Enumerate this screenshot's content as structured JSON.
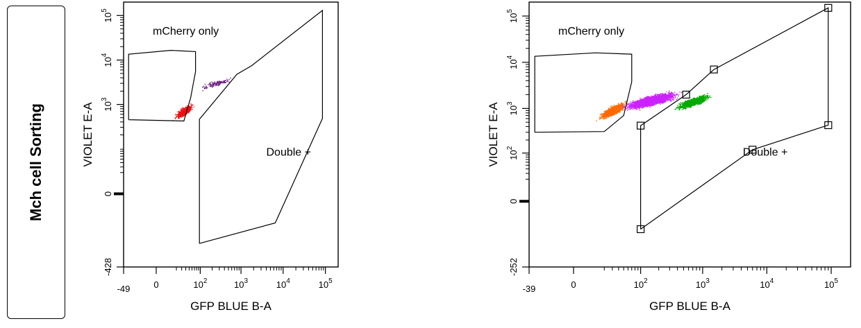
{
  "row_label": "Mch cell Sorting",
  "chart_data": [
    {
      "type": "scatter",
      "title": "",
      "xlabel": "GFP BLUE B-A",
      "ylabel": "VIOLET E-A",
      "x_scale": "biexponential",
      "y_scale": "biexponential",
      "xlim": [
        -49,
        200000
      ],
      "ylim": [
        -428,
        200000
      ],
      "x_ticks": [
        {
          "value": -49,
          "label": "-49"
        },
        {
          "value": 0,
          "label": "0"
        },
        {
          "value": 100,
          "label": "10^2"
        },
        {
          "value": 1000,
          "label": "10^3"
        },
        {
          "value": 10000,
          "label": "10^4"
        },
        {
          "value": 100000,
          "label": "10^5"
        }
      ],
      "y_ticks": [
        {
          "value": -428,
          "label": "-428"
        },
        {
          "value": 0,
          "label": "0"
        },
        {
          "value": 1000,
          "label": "10^3"
        },
        {
          "value": 10000,
          "label": "10^4"
        },
        {
          "value": 100000,
          "label": "10^5"
        }
      ],
      "gates": [
        {
          "name": "mCherry only",
          "label": "mCherry only",
          "vertices": [
            [
              -35,
              450
            ],
            [
              -35,
              13500
            ],
            [
              12,
              16500
            ],
            [
              75,
              15500
            ],
            [
              75,
              5500
            ],
            [
              55,
              1400
            ],
            [
              35,
              420
            ],
            [
              -35,
              450
            ]
          ]
        },
        {
          "name": "Double +",
          "label": "Double +",
          "show_handles": false,
          "vertices": [
            [
              95,
              -120
            ],
            [
              95,
              460
            ],
            [
              800,
              4800
            ],
            [
              1800,
              7500
            ],
            [
              85000,
              130000
            ],
            [
              85000,
              480
            ],
            [
              6500,
              -35
            ],
            [
              95,
              -120
            ]
          ]
        }
      ],
      "populations": [
        {
          "color": "#ee1111",
          "count": 700,
          "x_center": 35,
          "x_spread": 30,
          "y_center": 700,
          "y_spread": 500
        },
        {
          "color": "#6a1a80",
          "count": 130,
          "x_center": 250,
          "x_spread": 400,
          "y_center": 3000,
          "y_spread": 1500
        }
      ]
    },
    {
      "type": "scatter",
      "title": "",
      "xlabel": "GFP BLUE B-A",
      "ylabel": "VIOLET E-A",
      "x_scale": "biexponential",
      "y_scale": "biexponential",
      "xlim": [
        -39,
        200000
      ],
      "ylim": [
        -252,
        200000
      ],
      "x_ticks": [
        {
          "value": -39,
          "label": "-39"
        },
        {
          "value": 0,
          "label": "0"
        },
        {
          "value": 100,
          "label": "10^2"
        },
        {
          "value": 1000,
          "label": "10^3"
        },
        {
          "value": 10000,
          "label": "10^4"
        },
        {
          "value": 100000,
          "label": "10^5"
        }
      ],
      "y_ticks": [
        {
          "value": -252,
          "label": "-252"
        },
        {
          "value": 0,
          "label": "0"
        },
        {
          "value": 100,
          "label": "10^2"
        },
        {
          "value": 1000,
          "label": "10^3"
        },
        {
          "value": 10000,
          "label": "10^4"
        },
        {
          "value": 100000,
          "label": "10^5"
        }
      ],
      "gates": [
        {
          "name": "mCherry only",
          "label": "mCherry only",
          "vertices": [
            [
              -30,
              300
            ],
            [
              -30,
              13500
            ],
            [
              12,
              16000
            ],
            [
              70,
              15000
            ],
            [
              70,
              3800
            ],
            [
              50,
              700
            ],
            [
              20,
              310
            ],
            [
              -30,
              300
            ]
          ]
        },
        {
          "name": "Double +",
          "label": "Double +",
          "show_handles": true,
          "vertices": [
            [
              100,
              -30
            ],
            [
              100,
              420
            ],
            [
              550,
              2000
            ],
            [
              1500,
              7000
            ],
            [
              90000,
              150000
            ],
            [
              90000,
              430
            ],
            [
              6000,
              120
            ],
            [
              100,
              -30
            ]
          ]
        }
      ],
      "populations": [
        {
          "color": "#ff6a00",
          "count": 1500,
          "x_center": 30,
          "x_spread": 25,
          "y_center": 900,
          "y_spread": 700
        },
        {
          "color": "#cc22ff",
          "count": 3500,
          "x_center": 150,
          "x_spread": 250,
          "y_center": 1500,
          "y_spread": 1200
        },
        {
          "color": "#00aa00",
          "count": 1300,
          "x_center": 700,
          "x_spread": 600,
          "y_center": 1400,
          "y_spread": 900
        }
      ]
    }
  ]
}
